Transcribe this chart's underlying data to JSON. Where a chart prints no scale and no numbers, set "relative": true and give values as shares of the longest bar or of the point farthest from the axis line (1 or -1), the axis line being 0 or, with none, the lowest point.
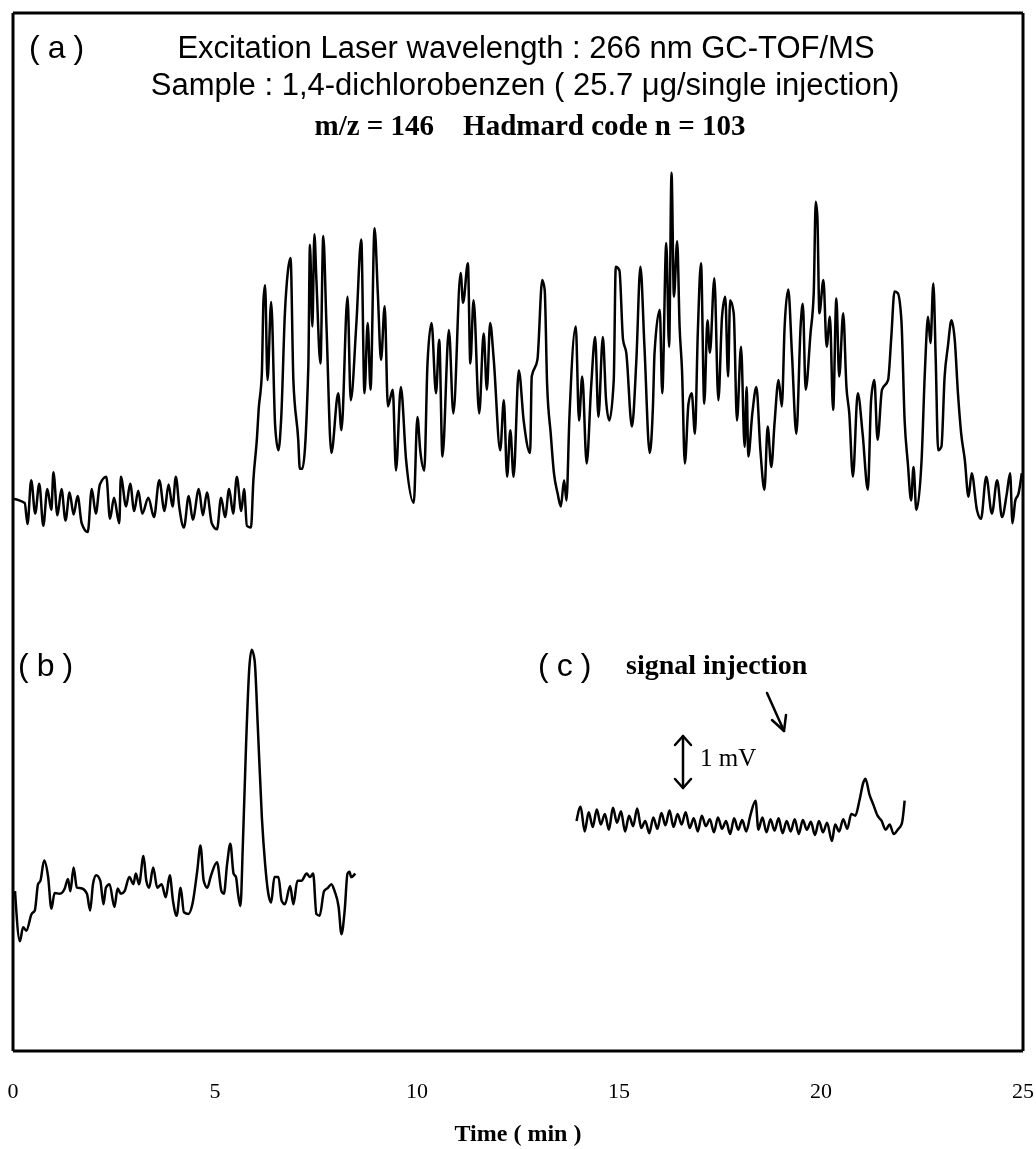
{
  "chart_data": {
    "type": "line",
    "title": "Excitation Laser wavelength : 266 nm GC-TOF/MS",
    "subtitle": "Sample : 1,4-dichlorobenzen ( 25.7 μg/single injection)",
    "xlabel": "Time ( min )",
    "annotations": [
      "(a)",
      "m/z = 146    Hadmard code n = 103",
      "(b)",
      "(c)",
      "signal injection",
      "1 mV"
    ],
    "relative": true,
    "xlim": [
      0,
      25
    ],
    "xticks": [
      0,
      5,
      10,
      15,
      20,
      25
    ],
    "tick_labels": "x",
    "line_style": "solid",
    "series": [
      {
        "color": "#000000",
        "x": [
          0,
          0.29,
          0.36,
          0.45,
          0.55,
          0.65,
          0.75,
          0.85,
          0.95,
          1.0,
          1.1,
          1.2,
          1.3,
          1.4,
          1.5,
          1.6,
          1.7,
          1.85,
          1.95,
          2.05,
          2.15,
          2.31,
          2.4,
          2.5,
          2.63,
          2.67,
          2.8,
          2.9,
          3.0,
          3.1,
          3.2,
          3.35,
          3.49,
          3.62,
          3.75,
          3.85,
          3.95,
          4.03,
          4.12,
          4.23,
          4.35,
          4.45,
          4.6,
          4.7,
          4.8,
          4.92,
          5.05,
          5.15,
          5.25,
          5.35,
          5.45,
          5.54,
          5.65,
          5.72,
          5.79,
          5.89,
          5.95,
          6.04,
          6.08,
          6.16,
          6.2,
          6.24,
          6.3,
          6.39,
          6.49,
          6.57,
          6.64,
          6.73,
          6.8,
          6.87,
          6.94,
          7.06,
          7.1,
          7.16,
          7.31,
          7.35,
          7.41,
          7.46,
          7.51,
          7.61,
          7.68,
          7.76,
          7.88,
          8.05,
          8.13,
          8.28,
          8.36,
          8.5,
          8.62,
          8.7,
          8.78,
          8.85,
          8.95,
          9.03,
          9.11,
          9.2,
          9.28,
          9.4,
          9.48,
          9.6,
          9.73,
          9.92,
          10.01,
          10.08,
          10.18,
          10.26,
          10.36,
          10.47,
          10.55,
          10.63,
          10.79,
          10.9,
          11.08,
          11.14,
          11.26,
          11.32,
          11.4,
          11.54,
          11.65,
          11.73,
          11.81,
          11.9,
          12.06,
          12.15,
          12.23,
          12.31,
          12.39,
          12.52,
          12.64,
          12.8,
          12.84,
          12.98,
          13.1,
          13.16,
          13.22,
          13.31,
          13.39,
          13.48,
          13.56,
          13.64,
          13.7,
          13.77,
          13.93,
          14.01,
          14.09,
          14.2,
          14.31,
          14.41,
          14.49,
          14.6,
          14.68,
          14.76,
          14.87,
          14.92,
          15.01,
          15.1,
          15.18,
          15.32,
          15.43,
          15.53,
          15.63,
          15.76,
          15.84,
          15.88,
          16.01,
          16.07,
          16.17,
          16.24,
          16.3,
          16.36,
          16.44,
          16.5,
          16.56,
          16.63,
          16.72,
          16.8,
          16.88,
          16.95,
          17.03,
          17.11,
          17.19,
          17.25,
          17.36,
          17.46,
          17.55,
          17.63,
          17.7,
          17.75,
          17.84,
          17.92,
          18.02,
          18.11,
          18.16,
          18.2,
          18.3,
          18.4,
          18.5,
          18.6,
          18.68,
          18.77,
          18.85,
          18.95,
          19.03,
          19.1,
          19.19,
          19.28,
          19.39,
          19.5,
          19.55,
          19.62,
          19.74,
          19.82,
          19.87,
          19.91,
          19.96,
          20.06,
          20.14,
          20.22,
          20.3,
          20.38,
          20.45,
          20.55,
          20.63,
          20.7,
          20.79,
          20.91,
          21.03,
          21.16,
          21.24,
          21.32,
          21.4,
          21.51,
          21.66,
          21.74,
          21.82,
          21.9,
          21.99,
          22.07,
          22.15,
          22.23,
          22.29,
          22.36,
          22.49,
          22.57,
          22.65,
          22.71,
          22.78,
          22.84,
          22.9,
          22.98,
          23.06,
          23.14,
          23.23,
          23.31,
          23.39,
          23.47,
          23.56,
          23.65,
          23.73,
          23.86,
          23.96,
          24.09,
          24.23,
          24.36,
          24.48,
          24.6,
          24.68,
          24.74,
          24.81,
          24.89,
          24.97
        ],
        "values": [
          0.629,
          0.624,
          0.6,
          0.65,
          0.612,
          0.646,
          0.598,
          0.64,
          0.616,
          0.659,
          0.61,
          0.64,
          0.604,
          0.636,
          0.611,
          0.632,
          0.601,
          0.591,
          0.64,
          0.612,
          0.645,
          0.654,
          0.606,
          0.63,
          0.601,
          0.654,
          0.62,
          0.646,
          0.615,
          0.638,
          0.612,
          0.63,
          0.608,
          0.65,
          0.615,
          0.645,
          0.62,
          0.654,
          0.618,
          0.596,
          0.632,
          0.605,
          0.64,
          0.61,
          0.636,
          0.601,
          0.594,
          0.63,
          0.608,
          0.64,
          0.612,
          0.654,
          0.615,
          0.64,
          0.598,
          0.596,
          0.65,
          0.699,
          0.73,
          0.772,
          0.855,
          0.872,
          0.764,
          0.853,
          0.711,
          0.684,
          0.722,
          0.84,
          0.886,
          0.903,
          0.764,
          0.696,
          0.663,
          0.663,
          0.779,
          0.918,
          0.825,
          0.93,
          0.878,
          0.783,
          0.928,
          0.825,
          0.681,
          0.749,
          0.707,
          0.859,
          0.741,
          0.829,
          0.924,
          0.749,
          0.829,
          0.753,
          0.937,
          0.863,
          0.787,
          0.848,
          0.734,
          0.753,
          0.661,
          0.756,
          0.673,
          0.624,
          0.722,
          0.684,
          0.661,
          0.783,
          0.829,
          0.749,
          0.81,
          0.677,
          0.821,
          0.726,
          0.886,
          0.852,
          0.897,
          0.783,
          0.855,
          0.726,
          0.817,
          0.753,
          0.829,
          0.787,
          0.684,
          0.741,
          0.654,
          0.707,
          0.654,
          0.775,
          0.718,
          0.681,
          0.768,
          0.787,
          0.878,
          0.867,
          0.76,
          0.703,
          0.658,
          0.635,
          0.62,
          0.65,
          0.627,
          0.718,
          0.825,
          0.718,
          0.768,
          0.669,
          0.756,
          0.813,
          0.722,
          0.813,
          0.741,
          0.718,
          0.764,
          0.893,
          0.889,
          0.81,
          0.795,
          0.711,
          0.787,
          0.893,
          0.802,
          0.681,
          0.734,
          0.795,
          0.844,
          0.749,
          0.92,
          0.802,
          1.0,
          0.859,
          0.922,
          0.825,
          0.775,
          0.669,
          0.737,
          0.749,
          0.703,
          0.817,
          0.897,
          0.737,
          0.832,
          0.795,
          0.88,
          0.741,
          0.836,
          0.859,
          0.768,
          0.855,
          0.84,
          0.718,
          0.802,
          0.688,
          0.756,
          0.677,
          0.726,
          0.756,
          0.684,
          0.639,
          0.711,
          0.665,
          0.715,
          0.764,
          0.734,
          0.825,
          0.867,
          0.795,
          0.703,
          0.829,
          0.851,
          0.753,
          0.817,
          0.863,
          0.967,
          0.95,
          0.84,
          0.878,
          0.802,
          0.836,
          0.73,
          0.857,
          0.768,
          0.84,
          0.756,
          0.726,
          0.654,
          0.749,
          0.703,
          0.639,
          0.741,
          0.764,
          0.696,
          0.753,
          0.764,
          0.813,
          0.865,
          0.863,
          0.832,
          0.718,
          0.669,
          0.627,
          0.665,
          0.616,
          0.673,
          0.772,
          0.836,
          0.806,
          0.874,
          0.787,
          0.684,
          0.688,
          0.768,
          0.802,
          0.832,
          0.81,
          0.749,
          0.703,
          0.673,
          0.631,
          0.658,
          0.616,
          0.606,
          0.654,
          0.612,
          0.65,
          0.608,
          0.635,
          0.658,
          0.601,
          0.627,
          0.635,
          0.658
        ]
      },
      {
        "color": "#000000",
        "x": [
          0.05,
          0.17,
          0.25,
          0.33,
          0.46,
          0.54,
          0.62,
          0.68,
          0.77,
          0.87,
          0.95,
          1.03,
          1.16,
          1.28,
          1.36,
          1.42,
          1.5,
          1.58,
          1.71,
          1.83,
          1.91,
          1.98,
          2.06,
          2.16,
          2.24,
          2.3,
          2.39,
          2.51,
          2.59,
          2.67,
          2.76,
          2.88,
          2.98,
          3.04,
          3.12,
          3.23,
          3.3,
          3.37,
          3.47,
          3.57,
          3.68,
          3.78,
          3.88,
          3.96,
          4.05,
          4.15,
          4.23,
          4.34,
          4.44,
          4.56,
          4.64,
          4.72,
          4.81,
          4.89,
          5.05,
          5.16,
          5.22,
          5.3,
          5.38,
          5.46,
          5.52,
          5.57,
          5.63,
          5.69,
          5.77,
          5.85,
          5.91,
          5.98,
          6.06,
          6.16,
          6.24,
          6.32,
          6.39,
          6.47,
          6.57,
          6.65,
          6.73,
          6.86,
          6.94,
          7.04,
          7.14,
          7.27,
          7.35,
          7.43,
          7.51,
          7.59,
          7.7,
          7.8,
          7.88,
          7.96,
          8.06,
          8.13,
          8.21,
          8.28,
          8.33,
          8.37,
          8.47
        ],
        "values": [
          0.182,
          0.125,
          0.141,
          0.137,
          0.156,
          0.16,
          0.19,
          0.194,
          0.217,
          0.198,
          0.162,
          0.18,
          0.179,
          0.185,
          0.196,
          0.182,
          0.209,
          0.186,
          0.185,
          0.179,
          0.16,
          0.19,
          0.2,
          0.194,
          0.167,
          0.186,
          0.19,
          0.164,
          0.185,
          0.179,
          0.182,
          0.198,
          0.19,
          0.202,
          0.19,
          0.222,
          0.194,
          0.186,
          0.209,
          0.186,
          0.19,
          0.175,
          0.2,
          0.171,
          0.154,
          0.186,
          0.158,
          0.156,
          0.167,
          0.205,
          0.234,
          0.194,
          0.186,
          0.198,
          0.215,
          0.182,
          0.179,
          0.213,
          0.236,
          0.202,
          0.198,
          0.179,
          0.165,
          0.236,
          0.35,
          0.437,
          0.457,
          0.445,
          0.369,
          0.266,
          0.213,
          0.179,
          0.169,
          0.198,
          0.198,
          0.171,
          0.167,
          0.188,
          0.167,
          0.194,
          0.194,
          0.202,
          0.198,
          0.202,
          0.156,
          0.154,
          0.182,
          0.186,
          0.19,
          0.182,
          0.164,
          0.133,
          0.16,
          0.202,
          0.204,
          0.198,
          0.202
        ]
      },
      {
        "color": "#000000",
        "x": [
          13.95,
          14.05,
          14.15,
          14.25,
          14.35,
          14.45,
          14.55,
          14.65,
          14.75,
          14.85,
          14.95,
          15.05,
          15.15,
          15.25,
          15.35,
          15.45,
          15.55,
          15.65,
          15.75,
          15.85,
          15.95,
          16.05,
          16.15,
          16.25,
          16.35,
          16.45,
          16.55,
          16.65,
          16.75,
          16.85,
          16.95,
          17.05,
          17.15,
          17.25,
          17.35,
          17.45,
          17.55,
          17.65,
          17.75,
          17.85,
          17.95,
          18.05,
          18.15,
          18.25,
          18.38,
          18.45,
          18.55,
          18.65,
          18.75,
          18.85,
          18.95,
          19.05,
          19.15,
          19.25,
          19.35,
          19.45,
          19.55,
          19.65,
          19.75,
          19.85,
          19.95,
          20.05,
          20.15,
          20.27,
          20.35,
          20.45,
          20.55,
          20.65,
          20.75,
          20.85,
          20.95,
          21.05,
          21.1,
          21.2,
          21.3,
          21.4,
          21.5,
          21.6,
          21.7,
          21.8,
          21.9,
          22.0,
          22.07
        ],
        "values": [
          0.262,
          0.278,
          0.25,
          0.272,
          0.255,
          0.275,
          0.258,
          0.27,
          0.252,
          0.277,
          0.26,
          0.273,
          0.25,
          0.268,
          0.256,
          0.276,
          0.254,
          0.262,
          0.248,
          0.266,
          0.253,
          0.271,
          0.257,
          0.274,
          0.255,
          0.27,
          0.258,
          0.272,
          0.254,
          0.265,
          0.25,
          0.268,
          0.256,
          0.264,
          0.249,
          0.266,
          0.253,
          0.262,
          0.247,
          0.265,
          0.252,
          0.263,
          0.25,
          0.268,
          0.285,
          0.252,
          0.266,
          0.249,
          0.264,
          0.251,
          0.265,
          0.248,
          0.262,
          0.25,
          0.264,
          0.247,
          0.263,
          0.252,
          0.261,
          0.246,
          0.262,
          0.249,
          0.26,
          0.239,
          0.258,
          0.25,
          0.264,
          0.253,
          0.27,
          0.268,
          0.285,
          0.306,
          0.31,
          0.292,
          0.28,
          0.268,
          0.262,
          0.252,
          0.258,
          0.247,
          0.252,
          0.259,
          0.285
        ]
      }
    ]
  }
}
